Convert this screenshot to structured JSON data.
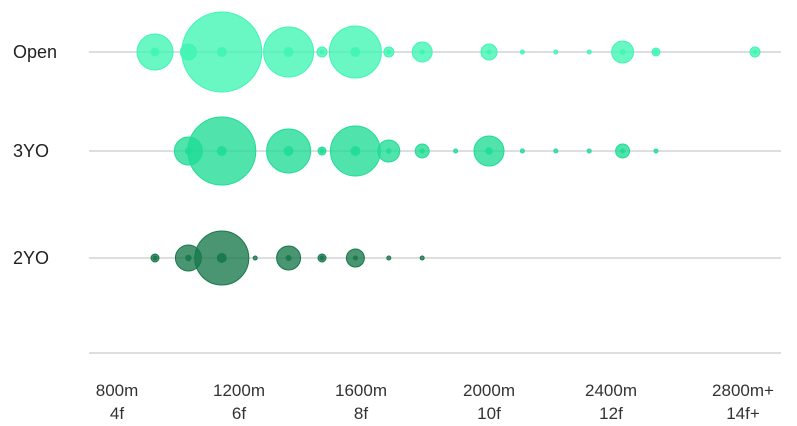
{
  "chart_data": {
    "type": "scatter",
    "title": "",
    "xlabel": "",
    "ylabel": "",
    "xlim": [
      750,
      2950
    ],
    "x_ticks": [
      {
        "value": 800,
        "label_m": "800m",
        "label_f": "4f"
      },
      {
        "value": 1200,
        "label_m": "1200m",
        "label_f": "6f"
      },
      {
        "value": 1600,
        "label_m": "1600m",
        "label_f": "8f"
      },
      {
        "value": 2000,
        "label_m": "2000m",
        "label_f": "10f"
      },
      {
        "value": 2400,
        "label_m": "2400m",
        "label_f": "12f"
      },
      {
        "value": 2800,
        "label_m": "2800m+",
        "label_f": "14f+"
      }
    ],
    "grid": false,
    "size_encoding": "relative count",
    "series": [
      {
        "name": "Open",
        "color": "#3ff5b4",
        "points": [
          {
            "x": 1000,
            "size": 18
          },
          {
            "x": 1100,
            "size": 8
          },
          {
            "x": 1200,
            "size": 40
          },
          {
            "x": 1400,
            "size": 25
          },
          {
            "x": 1500,
            "size": 5
          },
          {
            "x": 1600,
            "size": 26
          },
          {
            "x": 1700,
            "size": 5
          },
          {
            "x": 1800,
            "size": 10
          },
          {
            "x": 2000,
            "size": 8
          },
          {
            "x": 2100,
            "size": 2
          },
          {
            "x": 2200,
            "size": 2
          },
          {
            "x": 2300,
            "size": 2
          },
          {
            "x": 2400,
            "size": 11
          },
          {
            "x": 2500,
            "size": 4
          },
          {
            "x": 2800,
            "size": 5
          }
        ]
      },
      {
        "name": "3YO",
        "color": "#1fdc95",
        "points": [
          {
            "x": 1100,
            "size": 14
          },
          {
            "x": 1200,
            "size": 34
          },
          {
            "x": 1400,
            "size": 22
          },
          {
            "x": 1500,
            "size": 4
          },
          {
            "x": 1600,
            "size": 25
          },
          {
            "x": 1700,
            "size": 11
          },
          {
            "x": 1800,
            "size": 7
          },
          {
            "x": 1900,
            "size": 2
          },
          {
            "x": 2000,
            "size": 15
          },
          {
            "x": 2100,
            "size": 2
          },
          {
            "x": 2200,
            "size": 2
          },
          {
            "x": 2300,
            "size": 2
          },
          {
            "x": 2400,
            "size": 7
          },
          {
            "x": 2500,
            "size": 2
          }
        ]
      },
      {
        "name": "2YO",
        "color": "#17784a",
        "points": [
          {
            "x": 1000,
            "size": 4
          },
          {
            "x": 1100,
            "size": 13
          },
          {
            "x": 1200,
            "size": 27
          },
          {
            "x": 1300,
            "size": 2
          },
          {
            "x": 1400,
            "size": 12
          },
          {
            "x": 1500,
            "size": 4
          },
          {
            "x": 1600,
            "size": 9
          },
          {
            "x": 1700,
            "size": 2
          },
          {
            "x": 1800,
            "size": 2
          }
        ]
      }
    ]
  }
}
